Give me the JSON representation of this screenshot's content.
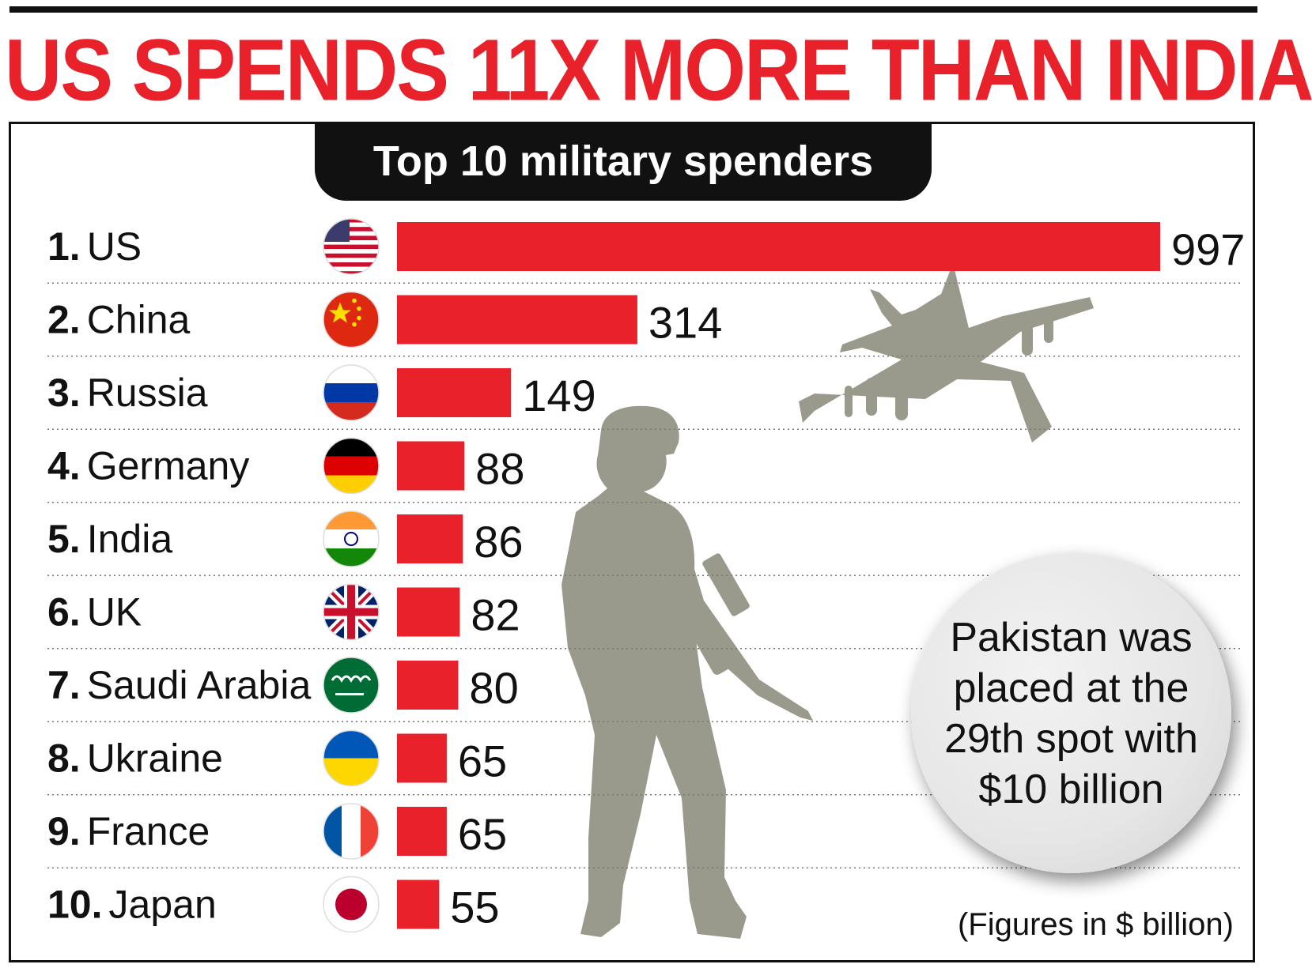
{
  "headline": "US SPENDS 11X MORE THAN INDIA",
  "subtitle": "Top 10 military spenders",
  "callout": "Pakistan was placed at the 29th spot with $10 billion",
  "footnote": "(Figures in $ billion)",
  "colors": {
    "bar": "#e8212a",
    "headline": "#e8212a",
    "silhouette": "#9a9a8c"
  },
  "chart_data": {
    "type": "bar",
    "orientation": "horizontal",
    "title": "Top 10 military spenders",
    "unit_note": "(Figures in $ billion)",
    "xlim": [
      0,
      997
    ],
    "grid": "dotted row separators",
    "categories": [
      "1. US",
      "2. China",
      "3. Russia",
      "4. Germany",
      "5. India",
      "6. UK",
      "7. Saudi Arabia",
      "8. Ukraine",
      "9. France",
      "10. Japan"
    ],
    "rows": [
      {
        "rank": "1.",
        "country": "US",
        "flag": "us-flag-icon",
        "value": 997
      },
      {
        "rank": "2.",
        "country": "China",
        "flag": "china-flag-icon",
        "value": 314
      },
      {
        "rank": "3.",
        "country": "Russia",
        "flag": "russia-flag-icon",
        "value": 149
      },
      {
        "rank": "4.",
        "country": "Germany",
        "flag": "germany-flag-icon",
        "value": 88
      },
      {
        "rank": "5.",
        "country": "India",
        "flag": "india-flag-icon",
        "value": 86
      },
      {
        "rank": "6.",
        "country": "UK",
        "flag": "uk-flag-icon",
        "value": 82
      },
      {
        "rank": "7.",
        "country": "Saudi Arabia",
        "flag": "saudi-arabia-flag-icon",
        "value": 80
      },
      {
        "rank": "8.",
        "country": "Ukraine",
        "flag": "ukraine-flag-icon",
        "value": 65
      },
      {
        "rank": "9.",
        "country": "France",
        "flag": "france-flag-icon",
        "value": 65
      },
      {
        "rank": "10.",
        "country": "Japan",
        "flag": "japan-flag-icon",
        "value": 55
      }
    ]
  }
}
